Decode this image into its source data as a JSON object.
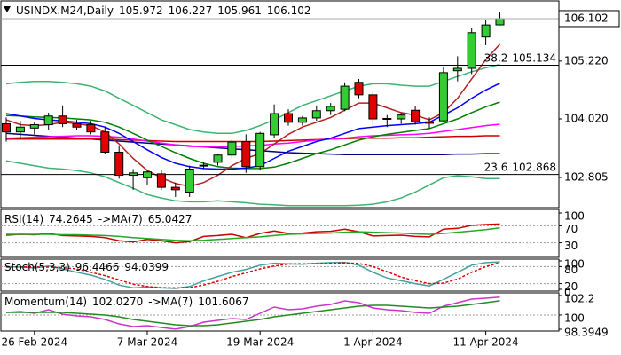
{
  "chart_data": [
    {
      "type": "candlestick",
      "symbol": "USINDX.M24,Daily",
      "categories": [
        null,
        null,
        "26 Feb 2024",
        null,
        null,
        null,
        null,
        null,
        null,
        null,
        "7 Mar 2024",
        null,
        null,
        null,
        null,
        null,
        null,
        null,
        "19 Mar 2024",
        null,
        null,
        null,
        null,
        null,
        null,
        null,
        "1 Apr 2024",
        null,
        null,
        null,
        null,
        null,
        null,
        null,
        "11 Apr 2024",
        null
      ],
      "open": [
        103.92,
        103.75,
        103.83,
        103.9,
        104.08,
        103.92,
        103.9,
        103.75,
        103.33,
        102.85,
        102.8,
        102.88,
        102.6,
        102.5,
        103.05,
        103.12,
        103.27,
        103.55,
        103.03,
        103.69,
        104.13,
        103.95,
        104.04,
        104.19,
        104.22,
        104.78,
        104.52,
        104.02,
        104.02,
        104.2,
        103.96,
        103.98,
        105.02,
        105.07,
        105.72,
        105.972
      ],
      "high": [
        104.05,
        103.98,
        103.95,
        104.15,
        104.3,
        104.0,
        103.98,
        103.85,
        103.45,
        102.98,
        102.95,
        102.95,
        102.7,
        103.05,
        103.12,
        103.3,
        103.6,
        103.7,
        103.75,
        104.32,
        104.22,
        104.08,
        104.3,
        104.35,
        104.78,
        104.85,
        104.6,
        104.1,
        104.15,
        104.28,
        104.05,
        105.1,
        105.32,
        105.9,
        106.08,
        106.227
      ],
      "low": [
        103.55,
        103.6,
        103.7,
        103.8,
        103.85,
        103.8,
        103.7,
        103.3,
        102.78,
        102.55,
        102.65,
        102.55,
        102.4,
        102.4,
        102.98,
        103.05,
        103.2,
        102.9,
        102.95,
        103.62,
        103.88,
        103.88,
        103.98,
        104.1,
        104.18,
        104.45,
        103.88,
        103.85,
        103.92,
        103.9,
        103.82,
        103.95,
        104.8,
        104.95,
        105.55,
        105.961
      ],
      "close": [
        103.75,
        103.85,
        103.9,
        104.08,
        103.92,
        103.85,
        103.75,
        103.33,
        102.85,
        102.9,
        102.92,
        102.6,
        102.55,
        102.98,
        103.06,
        103.27,
        103.54,
        103.03,
        103.72,
        104.13,
        103.95,
        104.04,
        104.19,
        104.28,
        104.7,
        104.52,
        104.02,
        104.03,
        104.1,
        103.96,
        103.93,
        104.98,
        105.07,
        105.81,
        105.97,
        106.102
      ],
      "up_color": "#33cc33",
      "down_color": "#e00000",
      "overlays": [
        {
          "color": "#3cb371",
          "values": [
            104.75,
            104.78,
            104.8,
            104.8,
            104.78,
            104.75,
            104.7,
            104.6,
            104.45,
            104.3,
            104.15,
            104.0,
            103.9,
            103.8,
            103.75,
            103.72,
            103.72,
            103.78,
            103.88,
            104.0,
            104.15,
            104.3,
            104.4,
            104.5,
            104.6,
            104.7,
            104.75,
            104.75,
            104.72,
            104.7,
            104.7,
            104.8,
            104.9,
            105.0,
            105.08,
            105.15
          ]
        },
        {
          "color": "#3cb371",
          "values": [
            103.15,
            103.1,
            103.05,
            103.0,
            102.98,
            102.95,
            102.9,
            102.82,
            102.7,
            102.58,
            102.45,
            102.38,
            102.32,
            102.3,
            102.3,
            102.32,
            102.3,
            102.28,
            102.25,
            102.24,
            102.22,
            102.22,
            102.22,
            102.22,
            102.22,
            102.23,
            102.25,
            102.3,
            102.38,
            102.5,
            102.65,
            102.8,
            102.84,
            102.82,
            102.78,
            102.78
          ]
        },
        {
          "color": "#000080",
          "values": [
            103.72,
            103.7,
            103.68,
            103.66,
            103.64,
            103.62,
            103.6,
            103.58,
            103.56,
            103.54,
            103.52,
            103.5,
            103.48,
            103.46,
            103.44,
            103.42,
            103.4,
            103.38,
            103.36,
            103.34,
            103.32,
            103.31,
            103.3,
            103.29,
            103.28,
            103.28,
            103.28,
            103.28,
            103.28,
            103.28,
            103.28,
            103.28,
            103.29,
            103.29,
            103.3,
            103.3
          ]
        },
        {
          "color": "#cc0000",
          "values": [
            103.6,
            103.6,
            103.6,
            103.6,
            103.6,
            103.6,
            103.6,
            103.6,
            103.59,
            103.58,
            103.57,
            103.56,
            103.55,
            103.55,
            103.55,
            103.55,
            103.55,
            103.55,
            103.55,
            103.56,
            103.57,
            103.58,
            103.59,
            103.6,
            103.61,
            103.62,
            103.62,
            103.62,
            103.63,
            103.63,
            103.64,
            103.65,
            103.66,
            103.66,
            103.67,
            103.67
          ]
        },
        {
          "color": "#ff00ff",
          "values": [
            103.62,
            103.63,
            103.64,
            103.65,
            103.66,
            103.67,
            103.67,
            103.66,
            103.64,
            103.6,
            103.56,
            103.52,
            103.48,
            103.45,
            103.44,
            103.44,
            103.45,
            103.46,
            103.47,
            103.5,
            103.52,
            103.55,
            103.58,
            103.6,
            103.62,
            103.65,
            103.67,
            103.68,
            103.69,
            103.7,
            103.72,
            103.76,
            103.8,
            103.84,
            103.88,
            103.91
          ]
        },
        {
          "color": "#008000",
          "values": [
            104.09,
            104.08,
            104.06,
            104.05,
            104.04,
            104.02,
            104.0,
            103.95,
            103.85,
            103.72,
            103.58,
            103.45,
            103.32,
            103.2,
            103.1,
            103.03,
            103.0,
            102.99,
            102.99,
            103.02,
            103.1,
            103.2,
            103.3,
            103.38,
            103.48,
            103.58,
            103.65,
            103.7,
            103.74,
            103.78,
            103.82,
            103.92,
            104.02,
            104.15,
            104.27,
            104.37
          ]
        },
        {
          "color": "#0000ff",
          "values": [
            104.13,
            104.08,
            104.03,
            104.0,
            103.98,
            103.95,
            103.92,
            103.85,
            103.72,
            103.55,
            103.38,
            103.22,
            103.1,
            103.03,
            102.99,
            102.98,
            102.98,
            103.0,
            103.05,
            103.2,
            103.35,
            103.45,
            103.55,
            103.62,
            103.72,
            103.82,
            103.85,
            103.88,
            103.9,
            103.92,
            103.95,
            104.1,
            104.25,
            104.45,
            104.62,
            104.76
          ]
        },
        {
          "color": "#b22222",
          "values": [
            104.0,
            103.9,
            103.88,
            103.9,
            103.95,
            103.92,
            103.88,
            103.75,
            103.5,
            103.2,
            102.95,
            102.8,
            102.68,
            102.62,
            102.7,
            102.85,
            103.05,
            103.2,
            103.3,
            103.5,
            103.7,
            103.85,
            103.95,
            104.05,
            104.2,
            104.35,
            104.35,
            104.25,
            104.15,
            104.1,
            104.0,
            104.15,
            104.45,
            104.85,
            105.25,
            105.57
          ]
        }
      ],
      "levels": [
        {
          "ratio": 38.2,
          "value": 105.134
        },
        {
          "ratio": 23.6,
          "value": 102.868
        }
      ],
      "ylim": [
        102.197,
        106.451
      ],
      "yticks": [
        {
          "value": 105.22,
          "label": "105.220"
        },
        {
          "value": 104.02,
          "label": "104.020"
        },
        102.805
      ]
    },
    {
      "type": "line",
      "series": [
        {
          "name": "RSI(14)",
          "color": "#cc0000",
          "values": [
            48,
            50,
            49,
            52,
            47,
            46,
            45,
            42,
            35,
            32,
            38,
            35,
            30,
            33,
            45,
            47,
            50,
            42,
            52,
            58,
            52,
            53,
            56,
            57,
            62,
            56,
            46,
            47,
            48,
            45,
            44,
            62,
            64,
            71,
            73,
            74.2645
          ]
        },
        {
          "name": "->MA(7)",
          "color": "#22aa22",
          "values": [
            50,
            50,
            50,
            50,
            49,
            49,
            48,
            47,
            45,
            42,
            40,
            38,
            36,
            35,
            36,
            38,
            40,
            42,
            44,
            47,
            50,
            51,
            52,
            53,
            55,
            56,
            55,
            54,
            53,
            51,
            50,
            52,
            55,
            58,
            61,
            65.0427
          ]
        }
      ],
      "ylim": [
        0,
        100
      ],
      "yticks": [
        100,
        70,
        30
      ],
      "grid": true
    },
    {
      "type": "line",
      "series": [
        {
          "name": "Stoch(5,3,3)",
          "color": "#46a0a0",
          "values": [
            80,
            78,
            75,
            82,
            72,
            60,
            50,
            35,
            15,
            5,
            8,
            5,
            3,
            10,
            30,
            45,
            60,
            70,
            85,
            92,
            90,
            88,
            92,
            94,
            95,
            85,
            60,
            40,
            30,
            20,
            12,
            35,
            60,
            85,
            94,
            96.4466
          ]
        },
        {
          "color": "#e00000",
          "style": "dashed",
          "values": [
            78,
            79,
            78,
            78,
            76,
            72,
            60,
            48,
            33,
            18,
            10,
            6,
            5,
            6,
            15,
            28,
            45,
            58,
            72,
            82,
            89,
            90,
            90,
            91,
            93,
            91,
            80,
            62,
            43,
            30,
            20,
            22,
            36,
            60,
            80,
            94.0399
          ]
        }
      ],
      "ylim": [
        0,
        100
      ],
      "yticks": [
        100,
        80,
        20,
        0
      ],
      "grid": true
    },
    {
      "type": "line",
      "series": [
        {
          "name": "Momentum(14)",
          "color": "#cc33cc",
          "values": [
            100.3,
            100.4,
            100.2,
            100.6,
            100.1,
            99.9,
            99.8,
            99.5,
            99.0,
            98.7,
            98.8,
            98.6,
            98.4,
            98.7,
            99.2,
            99.4,
            99.6,
            99.5,
            100.2,
            100.9,
            100.6,
            100.7,
            101.0,
            101.2,
            101.6,
            101.4,
            100.8,
            100.6,
            100.5,
            100.3,
            100.2,
            101.0,
            101.4,
            101.8,
            101.9,
            102.027
          ],
          "value_labels": [
            null,
            null,
            null,
            null,
            null,
            null,
            null,
            null,
            null,
            null,
            null,
            null,
            null,
            null,
            null,
            null,
            null,
            null,
            null,
            null,
            null,
            null,
            null,
            null,
            null,
            null,
            null,
            null,
            null,
            null,
            null,
            null,
            null,
            null,
            null,
            "102.0270"
          ]
        },
        {
          "name": "->MA(7)",
          "color": "#228b22",
          "values": [
            100.3,
            100.3,
            100.3,
            100.3,
            100.3,
            100.2,
            100.1,
            100.0,
            99.8,
            99.5,
            99.3,
            99.1,
            98.9,
            98.8,
            98.8,
            98.9,
            99.1,
            99.3,
            99.5,
            99.8,
            100.0,
            100.2,
            100.4,
            100.6,
            100.8,
            101.0,
            101.1,
            101.1,
            101.0,
            100.9,
            100.8,
            100.9,
            101.0,
            101.2,
            101.4,
            101.6067
          ]
        }
      ],
      "ylim": [
        98.3949,
        102.2
      ],
      "yticks": [
        102.2,
        100,
        98.3949
      ],
      "grid": true
    }
  ]
}
